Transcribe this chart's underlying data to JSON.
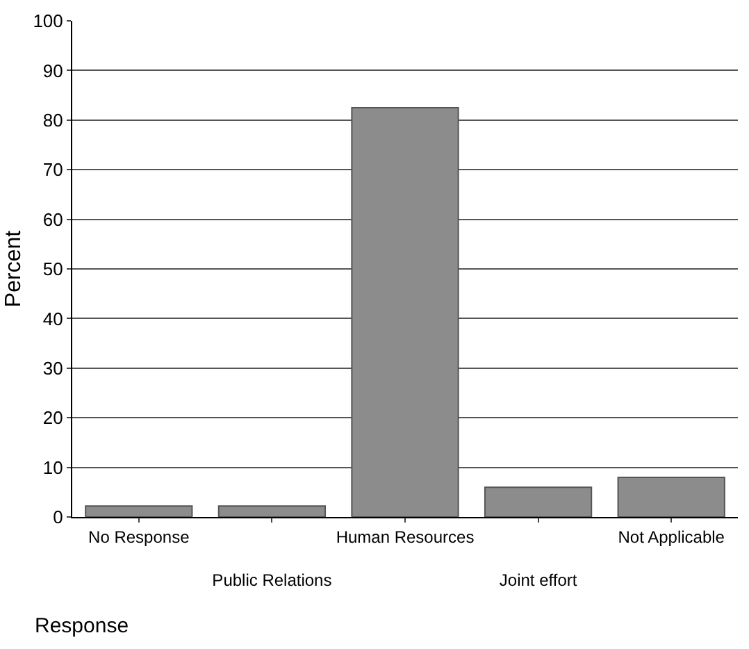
{
  "chart_data": {
    "type": "bar",
    "xlabel": "Response",
    "ylabel": "Percent",
    "categories": [
      "No Response",
      "Public Relations",
      "Human Resources",
      "Joint effort",
      "Not Applicable"
    ],
    "values": [
      2.2,
      2.2,
      82.5,
      6,
      8
    ],
    "color": "#8c8c8c",
    "ylim": [
      0,
      100
    ],
    "yticks": [
      0,
      10,
      20,
      30,
      40,
      50,
      60,
      70,
      80,
      90,
      100
    ],
    "grid": "y",
    "legend": false
  }
}
